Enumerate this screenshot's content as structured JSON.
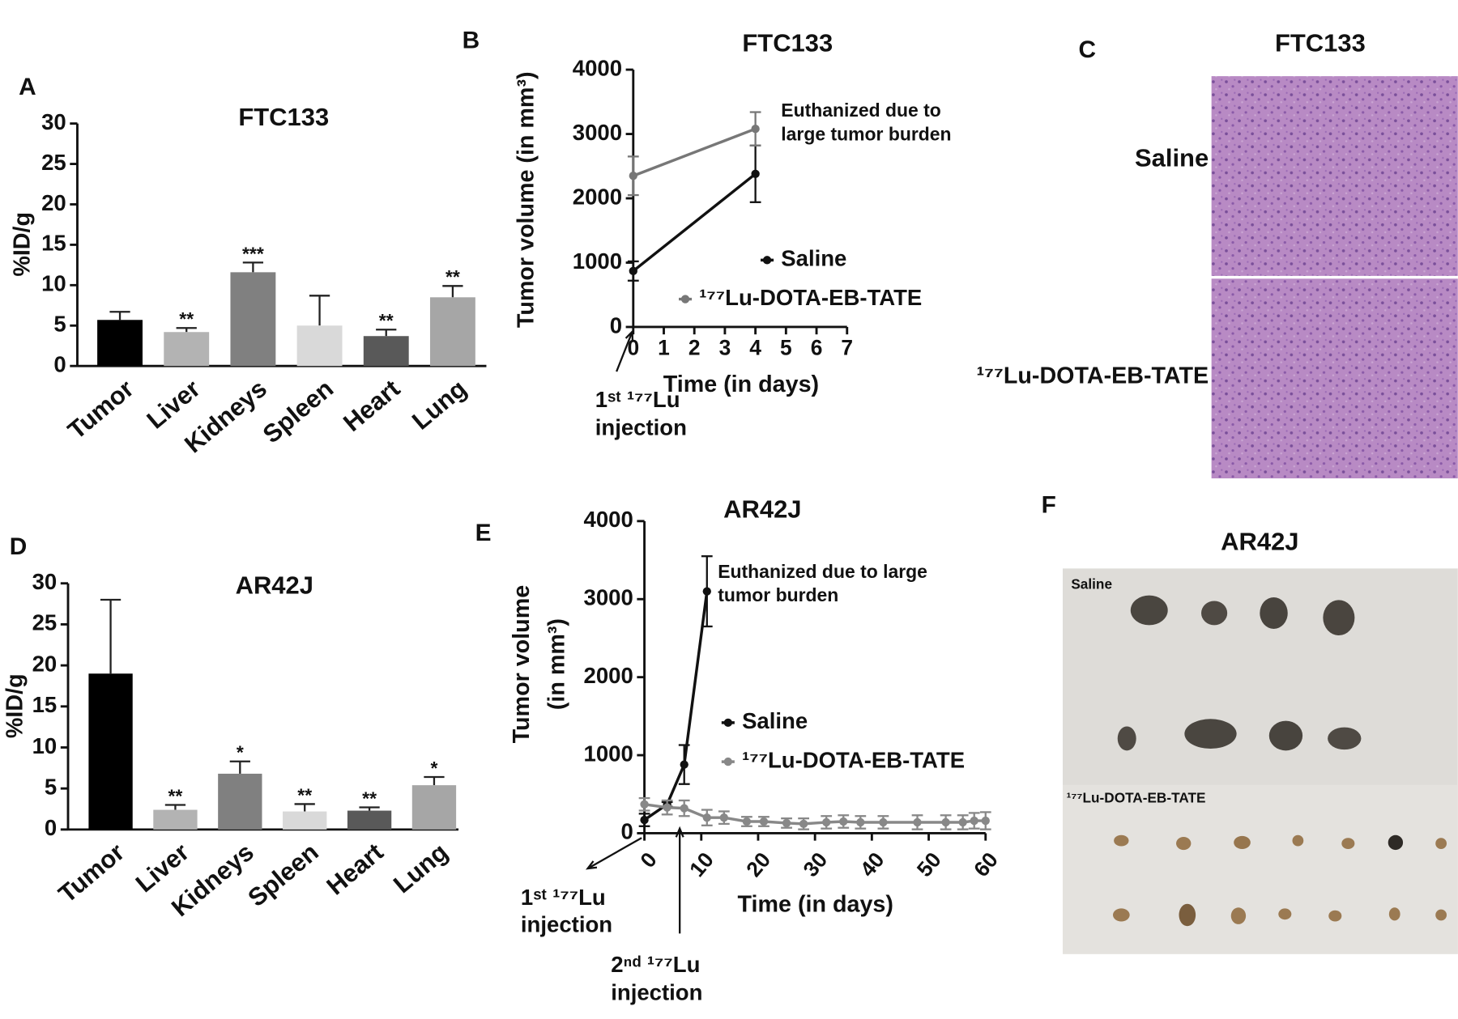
{
  "chart_data": [
    {
      "type": "bar",
      "label": "A",
      "title": "FTC133",
      "ylabel": "%ID/g",
      "categories": [
        "Tumor",
        "Liver",
        "Kidneys",
        "Spleen",
        "Heart",
        "Lung"
      ],
      "values": [
        5.7,
        4.2,
        11.6,
        5.0,
        3.7,
        8.5
      ],
      "errors": [
        1.0,
        0.5,
        1.2,
        3.7,
        0.8,
        1.4
      ],
      "annotations": [
        null,
        "**",
        "***",
        null,
        "**",
        "**"
      ],
      "colors": [
        "#000000",
        "#b3b3b3",
        "#808080",
        "#d9d9d9",
        "#595959",
        "#a6a6a6"
      ],
      "ylim": [
        0,
        30
      ],
      "yticks": [
        0,
        5,
        10,
        15,
        20,
        25,
        30
      ]
    },
    {
      "type": "line",
      "label": "B",
      "title": "FTC133",
      "ylabel": "Tumor volume (in mm³)",
      "xlabel": "Time (in days)",
      "xlim": [
        0,
        7
      ],
      "xticks": [
        0,
        1,
        2,
        3,
        4,
        5,
        6,
        7
      ],
      "ylim": [
        0,
        4000
      ],
      "yticks": [
        0,
        1000,
        2000,
        3000,
        4000
      ],
      "series": [
        {
          "name": "Saline",
          "color": "#111111",
          "x": [
            0,
            4
          ],
          "values": [
            870,
            2380
          ],
          "errors": [
            150,
            440
          ]
        },
        {
          "name": "¹⁷⁷Lu-DOTA-EB-TATE",
          "color": "#777777",
          "x": [
            0,
            4
          ],
          "values": [
            2350,
            3080
          ],
          "errors": [
            300,
            260
          ]
        }
      ],
      "annotations": [
        [
          "Euthanized due to",
          "large tumor burden"
        ],
        [
          "1ˢᵗ ¹⁷⁷Lu",
          "injection"
        ]
      ]
    },
    {
      "type": "bar",
      "label": "D",
      "title": "AR42J",
      "ylabel": "%ID/g",
      "categories": [
        "Tumor",
        "Liver",
        "Kidneys",
        "Spleen",
        "Heart",
        "Lung"
      ],
      "values": [
        19.0,
        2.4,
        6.8,
        2.2,
        2.3,
        5.4
      ],
      "errors": [
        9.0,
        0.6,
        1.5,
        0.9,
        0.4,
        1.0
      ],
      "annotations": [
        null,
        "**",
        "*",
        "**",
        "**",
        "*"
      ],
      "colors": [
        "#000000",
        "#b3b3b3",
        "#808080",
        "#d9d9d9",
        "#595959",
        "#a6a6a6"
      ],
      "ylim": [
        0,
        30
      ],
      "yticks": [
        0,
        5,
        10,
        15,
        20,
        25,
        30
      ]
    },
    {
      "type": "line",
      "label": "E",
      "title": "AR42J",
      "ylabel": [
        "Tumor volume",
        "(in mm³)"
      ],
      "xlabel": "Time (in days)",
      "xlim": [
        0,
        60
      ],
      "xticks": [
        0,
        10,
        20,
        30,
        40,
        50,
        60
      ],
      "ylim": [
        0,
        4000
      ],
      "yticks": [
        0,
        1000,
        2000,
        3000,
        4000
      ],
      "series": [
        {
          "name": "Saline",
          "color": "#111111",
          "x": [
            0,
            4,
            7,
            11
          ],
          "values": [
            170,
            370,
            880,
            3100
          ],
          "errors": [
            80,
            30,
            250,
            450
          ]
        },
        {
          "name": "¹⁷⁷Lu-DOTA-EB-TATE",
          "color": "#888888",
          "x": [
            0,
            4,
            7,
            11,
            14,
            18,
            21,
            25,
            28,
            32,
            35,
            38,
            42,
            48,
            53,
            56,
            58,
            60
          ],
          "values": [
            370,
            330,
            320,
            200,
            200,
            150,
            150,
            130,
            120,
            140,
            150,
            140,
            140,
            140,
            140,
            140,
            160,
            160
          ],
          "errors": [
            80,
            90,
            100,
            100,
            80,
            60,
            60,
            60,
            70,
            80,
            80,
            80,
            80,
            90,
            90,
            90,
            100,
            110
          ]
        }
      ],
      "annotations": [
        [
          "Euthanized due to large",
          "tumor burden"
        ],
        [
          "1ˢᵗ ¹⁷⁷Lu",
          "injection"
        ],
        [
          "2ⁿᵈ ¹⁷⁷Lu",
          "injection"
        ]
      ]
    }
  ],
  "panel_c": {
    "label": "C",
    "title": "FTC133",
    "rows": [
      "Saline",
      "¹⁷⁷Lu-DOTA-EB-TATE"
    ]
  },
  "panel_f": {
    "label": "F",
    "title": "AR42J",
    "rows": [
      "Saline",
      "¹⁷⁷Lu-DOTA-EB-TATE"
    ]
  }
}
